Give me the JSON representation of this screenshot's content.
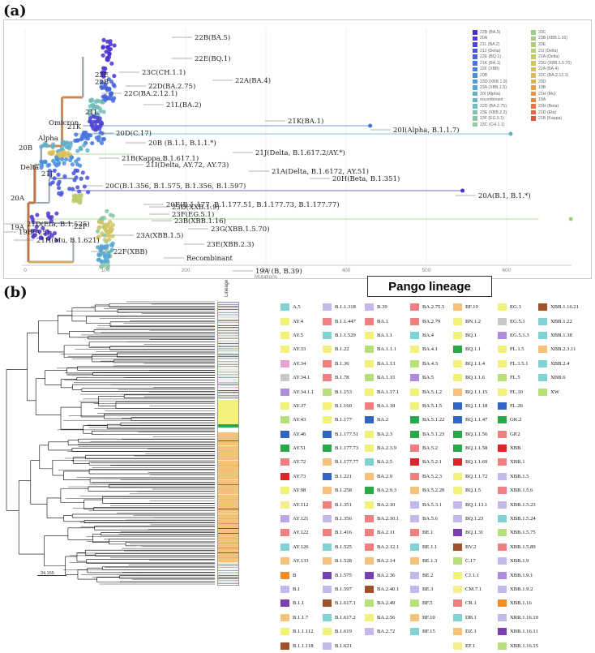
{
  "panel_a": {
    "label": "(a)",
    "axis": {
      "ticks": [
        "0",
        "100",
        "200",
        "300",
        "400",
        "500",
        "600"
      ],
      "title": "Mutations"
    },
    "clade_labels": [
      "22B(BA.5)",
      "22E(BQ.1)",
      "23C(CH.1.1)",
      "22A(BA.4)",
      "22D(BA.2.75)",
      "22C(BA.2.12.1)",
      "21L(BA.2)",
      "21K(BA.1)",
      "20I(Alpha, B.1.1.7)",
      "20D(C.17)",
      "20B (B.1.1, B.1.1.*)",
      "21J(Delta, B.1.617.2/AY.*)",
      "21B(Kappa,B.1.617.1)",
      "21I(Delta, AY.72, AY.73)",
      "21A(Delta, B.1.6172, AY.51)",
      "20H(Beta, B.1.351)",
      "20C(B.1.356, B.1.575, B.1.356, B.1.597)",
      "20A(B.1, B.1.*)",
      "20E(B.1.177, B.1.177.51, B.1.177.73, B.1.177.77)",
      "21D(Eta, B.1.525)",
      "19B(A.5)",
      "21H(Mu, B.1.621)",
      "23D(XXB.1.9)",
      "23F(EG.5.1)",
      "23B(XBB.1.16)",
      "23G(XBB.1.5.70)",
      "23A(XBB.1.5)",
      "23E(XBB.2.3)",
      "22F(XBB)",
      "Recombinant",
      "19A (B, B.39)"
    ],
    "node_labels": [
      "22B",
      "22E",
      "21L",
      "21K",
      "Omicron",
      "Alpha",
      "20B",
      "Delta",
      "21J",
      "20A",
      "19A",
      "22F"
    ],
    "legend_col1": [
      {
        "label": "22B (BA.5)",
        "color": "#4a2fd0"
      },
      {
        "label": "20A",
        "color": "#5538d2"
      },
      {
        "label": "21L (BA.2)",
        "color": "#4c46d6"
      },
      {
        "label": "21J (Delta)",
        "color": "#4755d9"
      },
      {
        "label": "22E (BQ.1)",
        "color": "#4464dc"
      },
      {
        "label": "21K (BA.1)",
        "color": "#4473de"
      },
      {
        "label": "22F (XBB)",
        "color": "#4682df"
      },
      {
        "label": "20B",
        "color": "#4a8fdd"
      },
      {
        "label": "23D (XBB.1.9)",
        "color": "#509bd9"
      },
      {
        "label": "23A (XBB.1.5)",
        "color": "#57a6d3"
      },
      {
        "label": "20I (Alpha)",
        "color": "#5fafcc"
      },
      {
        "label": "recombinant",
        "color": "#68b7c3"
      },
      {
        "label": "22D (BA.2.75)",
        "color": "#72bdb9"
      },
      {
        "label": "23E (XBB.2.3)",
        "color": "#7cc2ae"
      },
      {
        "label": "23F (EG.5.1)",
        "color": "#86c6a3"
      },
      {
        "label": "23C (CH.1.1)",
        "color": "#91c998"
      }
    ],
    "legend_col2": [
      {
        "label": "20C",
        "color": "#9ccb8d"
      },
      {
        "label": "23B (XBB.1.16)",
        "color": "#a7cd82"
      },
      {
        "label": "20E",
        "color": "#b2cd78"
      },
      {
        "label": "21I (Delta)",
        "color": "#bdcc6f"
      },
      {
        "label": "21A (Delta)",
        "color": "#c7ca66"
      },
      {
        "label": "23G (XBB.1.5.70)",
        "color": "#d1c65f"
      },
      {
        "label": "22A (BA.4)",
        "color": "#d9c059"
      },
      {
        "label": "22C (BA.2.12.1)",
        "color": "#e0b854"
      },
      {
        "label": "20D",
        "color": "#e5ae50"
      },
      {
        "label": "19B",
        "color": "#e8a24c"
      },
      {
        "label": "21H (Mu)",
        "color": "#e99548"
      },
      {
        "label": "19A",
        "color": "#e98645"
      },
      {
        "label": "20H (Beta)",
        "color": "#e77642"
      },
      {
        "label": "21D (Eta)",
        "color": "#e4653f"
      },
      {
        "label": "21B (Kappa)",
        "color": "#df533c"
      }
    ]
  },
  "panel_b": {
    "label": "(b)",
    "title": "Pango lineage",
    "strip_header": "Lineage",
    "scale_label": "34.165",
    "legend_columns": [
      [
        {
          "label": "A.5",
          "color": "#7fd3d3"
        },
        {
          "label": "AY.4",
          "color": "#f2f27a"
        },
        {
          "label": "AY.5",
          "color": "#f2f27a"
        },
        {
          "label": "AY.33",
          "color": "#f2f27a"
        },
        {
          "label": "AY.34",
          "color": "#e8a0d8"
        },
        {
          "label": "AY.34.1",
          "color": "#c8c8c8"
        },
        {
          "label": "AY.34.1.1",
          "color": "#b08adc"
        },
        {
          "label": "AY.37",
          "color": "#f2f27a"
        },
        {
          "label": "AY.43",
          "color": "#b7e07a"
        },
        {
          "label": "AY.46",
          "color": "#2f66c4"
        },
        {
          "label": "AY.51",
          "color": "#2aa84a"
        },
        {
          "label": "AY.72",
          "color": "#f08080"
        },
        {
          "label": "AY.73",
          "color": "#d62828"
        },
        {
          "label": "AY.98",
          "color": "#f2f27a"
        },
        {
          "label": "AY.112",
          "color": "#f5ee90"
        },
        {
          "label": "AY.121",
          "color": "#b9a6e6"
        },
        {
          "label": "AY.122",
          "color": "#f08080"
        },
        {
          "label": "AY.126",
          "color": "#7fd3d3"
        },
        {
          "label": "AY.133",
          "color": "#f5c27a"
        },
        {
          "label": "B",
          "color": "#f28c28"
        },
        {
          "label": "B.1",
          "color": "#c5b8ea"
        },
        {
          "label": "B.1.1",
          "color": "#7a3fb0"
        },
        {
          "label": "B.1.1.7",
          "color": "#f5c27a"
        },
        {
          "label": "B.1.1.112",
          "color": "#f2f27a"
        },
        {
          "label": "B.1.1.118",
          "color": "#a0522d"
        }
      ],
      [
        {
          "label": "B.1.1.318",
          "color": "#c5b8ea"
        },
        {
          "label": "B.1.1.447",
          "color": "#f08080"
        },
        {
          "label": "B.1.1.529",
          "color": "#7fd3d3"
        },
        {
          "label": "B.1.22",
          "color": "#f2f27a"
        },
        {
          "label": "B.1.36",
          "color": "#f08080"
        },
        {
          "label": "B.1.78",
          "color": "#f08080"
        },
        {
          "label": "B.1.153",
          "color": "#b7e07a"
        },
        {
          "label": "B.1.160",
          "color": "#f2f27a"
        },
        {
          "label": "B.1.177",
          "color": "#f2f27a"
        },
        {
          "label": "B.1.177.51",
          "color": "#2f66c4"
        },
        {
          "label": "B.1.177.73",
          "color": "#2aa84a"
        },
        {
          "label": "B.1.177.77",
          "color": "#f5c27a"
        },
        {
          "label": "B.1.221",
          "color": "#2f66c4"
        },
        {
          "label": "B.1.258",
          "color": "#f5c27a"
        },
        {
          "label": "B.1.351",
          "color": "#f08080"
        },
        {
          "label": "B.1.356",
          "color": "#c5b8ea"
        },
        {
          "label": "B.1.416",
          "color": "#f08080"
        },
        {
          "label": "B.1.525",
          "color": "#7fd3d3"
        },
        {
          "label": "B.1.528",
          "color": "#f5c27a"
        },
        {
          "label": "B.1.575",
          "color": "#7a3fb0"
        },
        {
          "label": "B.1.597",
          "color": "#c5b8ea"
        },
        {
          "label": "B.1.617.1",
          "color": "#a0522d"
        },
        {
          "label": "B.1.617.2",
          "color": "#7fd3d3"
        },
        {
          "label": "B.1.619",
          "color": "#f2f27a"
        },
        {
          "label": "B.1.621",
          "color": "#c5b8ea"
        }
      ],
      [
        {
          "label": "B.39",
          "color": "#c5b8ea"
        },
        {
          "label": "BA.1",
          "color": "#f08080"
        },
        {
          "label": "BA.1.1",
          "color": "#f2f27a"
        },
        {
          "label": "BA.1.1.1",
          "color": "#b7e07a"
        },
        {
          "label": "BA.1.13",
          "color": "#f2f27a"
        },
        {
          "label": "BA.1.15",
          "color": "#b7e07a"
        },
        {
          "label": "BA.1.17.1",
          "color": "#f2f27a"
        },
        {
          "label": "BA.1.18",
          "color": "#f08080"
        },
        {
          "label": "BA.2",
          "color": "#2f66c4"
        },
        {
          "label": "BA.2.3",
          "color": "#f2f27a"
        },
        {
          "label": "BA.2.3.9",
          "color": "#f2f27a"
        },
        {
          "label": "BA.2.5",
          "color": "#7fd3d3"
        },
        {
          "label": "BA.2.9",
          "color": "#f5c27a"
        },
        {
          "label": "BA.2.9.3",
          "color": "#2aa84a"
        },
        {
          "label": "BA.2.10",
          "color": "#f2f27a"
        },
        {
          "label": "BA.2.10.1",
          "color": "#f08080"
        },
        {
          "label": "BA.2.11",
          "color": "#f08080"
        },
        {
          "label": "BA.2.12.1",
          "color": "#f08080"
        },
        {
          "label": "BA.2.14",
          "color": "#f5c27a"
        },
        {
          "label": "BA.2.36",
          "color": "#7a3fb0"
        },
        {
          "label": "BA.2.40.1",
          "color": "#a0522d"
        },
        {
          "label": "BA.2.49",
          "color": "#b7e07a"
        },
        {
          "label": "BA.2.56",
          "color": "#f2f27a"
        },
        {
          "label": "BA.2.72",
          "color": "#c5b8ea"
        }
      ],
      [
        {
          "label": "BA.2.75.5",
          "color": "#f08080"
        },
        {
          "label": "BA.2.79",
          "color": "#f08080"
        },
        {
          "label": "BA.4",
          "color": "#7fd3d3"
        },
        {
          "label": "BA.4.1",
          "color": "#f2f27a"
        },
        {
          "label": "BA.4.3",
          "color": "#b7e07a"
        },
        {
          "label": "BA.5",
          "color": "#b08adc"
        },
        {
          "label": "BA.5.1.2",
          "color": "#f2f27a"
        },
        {
          "label": "BA.5.1.5",
          "color": "#f2f27a"
        },
        {
          "label": "BA.5.1.22",
          "color": "#2aa84a"
        },
        {
          "label": "BA.5.1.23",
          "color": "#2aa84a"
        },
        {
          "label": "BA.5.2",
          "color": "#f08080"
        },
        {
          "label": "BA.5.2.1",
          "color": "#d62828"
        },
        {
          "label": "BA.5.2.3",
          "color": "#f08080"
        },
        {
          "label": "BA.5.2.20",
          "color": "#f5c27a"
        },
        {
          "label": "BA.5.3.1",
          "color": "#c5b8ea"
        },
        {
          "label": "BA.5.6",
          "color": "#c5b8ea"
        },
        {
          "label": "BE.1",
          "color": "#f08080"
        },
        {
          "label": "BE.1.1",
          "color": "#7fd3d3"
        },
        {
          "label": "BE.1.3",
          "color": "#f5c27a"
        },
        {
          "label": "BE.2",
          "color": "#c5b8ea"
        },
        {
          "label": "BE.3",
          "color": "#c5b8ea"
        },
        {
          "label": "BF.5",
          "color": "#b7e07a"
        },
        {
          "label": "BF.10",
          "color": "#f5c27a"
        },
        {
          "label": "BF.15",
          "color": "#7fd3d3"
        }
      ],
      [
        {
          "label": "BF.19",
          "color": "#f5c27a"
        },
        {
          "label": "BN.1.2",
          "color": "#f2f27a"
        },
        {
          "label": "BQ.1",
          "color": "#f2f27a"
        },
        {
          "label": "BQ.1.1",
          "color": "#2aa84a"
        },
        {
          "label": "BQ.1.1.4",
          "color": "#f2f27a"
        },
        {
          "label": "BQ.1.1.6",
          "color": "#f2f27a"
        },
        {
          "label": "BQ.1.1.15",
          "color": "#f5c27a"
        },
        {
          "label": "BQ.1.1.18",
          "color": "#2f66c4"
        },
        {
          "label": "BQ.1.1.47",
          "color": "#2f66c4"
        },
        {
          "label": "BQ.1.1.56",
          "color": "#2aa84a"
        },
        {
          "label": "BQ.1.1.58",
          "color": "#2aa84a"
        },
        {
          "label": "BQ.1.1.69",
          "color": "#d62828"
        },
        {
          "label": "BQ.1.1.72",
          "color": "#f2f27a"
        },
        {
          "label": "BQ.1.5",
          "color": "#f2f27a"
        },
        {
          "label": "BQ.1.13.1",
          "color": "#c5b8ea"
        },
        {
          "label": "BQ.1.23",
          "color": "#c5b8ea"
        },
        {
          "label": "BQ.1.31",
          "color": "#7a3fb0"
        },
        {
          "label": "BV.2",
          "color": "#a0522d"
        },
        {
          "label": "C.17",
          "color": "#b7e07a"
        },
        {
          "label": "CJ.1.1",
          "color": "#f2f27a"
        },
        {
          "label": "CM.7.1",
          "color": "#f5ee90"
        },
        {
          "label": "CR.1",
          "color": "#f08080"
        },
        {
          "label": "DB.1",
          "color": "#7fd3d3"
        },
        {
          "label": "DZ.1",
          "color": "#f5c27a"
        },
        {
          "label": "EF.1",
          "color": "#f5ee90"
        }
      ],
      [
        {
          "label": "EG.3",
          "color": "#f2f27a"
        },
        {
          "label": "EG.5.1",
          "color": "#c8c8c8"
        },
        {
          "label": "EG.5.1.3",
          "color": "#b08adc"
        },
        {
          "label": "FL.1.5",
          "color": "#f2f27a"
        },
        {
          "label": "FL.1.5.1",
          "color": "#f2f27a"
        },
        {
          "label": "FL.5",
          "color": "#b7e07a"
        },
        {
          "label": "FL.10",
          "color": "#f2f27a"
        },
        {
          "label": "FL.26",
          "color": "#2f66c4"
        },
        {
          "label": "GK.2",
          "color": "#2aa84a"
        },
        {
          "label": "GP.2",
          "color": "#f08080"
        },
        {
          "label": "XBB",
          "color": "#d62828"
        },
        {
          "label": "XBB.1",
          "color": "#f08080"
        },
        {
          "label": "XBB.1.5",
          "color": "#c5b8ea"
        },
        {
          "label": "XBB.1.5.6",
          "color": "#f08080"
        },
        {
          "label": "XBB.1.5.23",
          "color": "#c5b8ea"
        },
        {
          "label": "XBB.1.5.24",
          "color": "#7fd3d3"
        },
        {
          "label": "XBB.1.5.75",
          "color": "#b7e07a"
        },
        {
          "label": "XBB.1.5.89",
          "color": "#f08080"
        },
        {
          "label": "XBB.1.9",
          "color": "#c5b8ea"
        },
        {
          "label": "XBB.1.9.1",
          "color": "#b08adc"
        },
        {
          "label": "XBB.1.9.2",
          "color": "#c5b8ea"
        },
        {
          "label": "XBB.1.16",
          "color": "#f28c28"
        },
        {
          "label": "XRR.1.16.10",
          "color": "#c5b8ea"
        },
        {
          "label": "XBB.1.16.11",
          "color": "#7a3fb0"
        },
        {
          "label": "XBB.1.16.15",
          "color": "#b7e07a"
        }
      ],
      [
        {
          "label": "XBB.1.16.21",
          "color": "#a0522d"
        },
        {
          "label": "XBB.1.22",
          "color": "#7fd3d3"
        },
        {
          "label": "XBB.1.38",
          "color": "#7fd3d3"
        },
        {
          "label": "XBB.2.3.11",
          "color": "#f5c27a"
        },
        {
          "label": "XBB.2.4",
          "color": "#7fd3d3"
        },
        {
          "label": "XBB.6",
          "color": "#7fd3d3"
        },
        {
          "label": "XW",
          "color": "#b7e07a"
        }
      ]
    ]
  }
}
